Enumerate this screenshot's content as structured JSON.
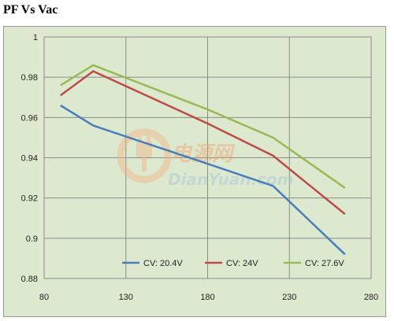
{
  "page": {
    "title": "PF Vs Vac"
  },
  "watermark": {
    "logo": "电源网",
    "url": "DianYuan.com"
  },
  "chart_data": {
    "type": "line",
    "title": "",
    "xlabel": "",
    "ylabel": "",
    "xlim": [
      80,
      280
    ],
    "ylim": [
      0.88,
      1.0
    ],
    "x_ticks": [
      80,
      130,
      180,
      230,
      280
    ],
    "y_ticks": [
      0.88,
      0.9,
      0.92,
      0.94,
      0.96,
      0.98,
      1
    ],
    "x_tick_labels": [
      "80",
      "130",
      "180",
      "230",
      "280"
    ],
    "y_tick_labels": [
      "0.88",
      "0.9",
      "0.92",
      "0.94",
      "0.96",
      "0.98",
      "1"
    ],
    "grid": true,
    "legend_position": "bottom-right",
    "series": [
      {
        "name": "CV: 20.4V",
        "color": "#4a7ebb",
        "x": [
          90,
          110,
          180,
          220,
          264
        ],
        "y": [
          0.966,
          0.956,
          0.937,
          0.926,
          0.892
        ]
      },
      {
        "name": "CV: 24V",
        "color": "#be4b48",
        "x": [
          90,
          110,
          180,
          220,
          264
        ],
        "y": [
          0.971,
          0.983,
          0.957,
          0.941,
          0.912
        ]
      },
      {
        "name": "CV: 27.6V",
        "color": "#98b954",
        "x": [
          90,
          110,
          180,
          220,
          264
        ],
        "y": [
          0.976,
          0.986,
          0.964,
          0.95,
          0.925
        ]
      }
    ]
  }
}
